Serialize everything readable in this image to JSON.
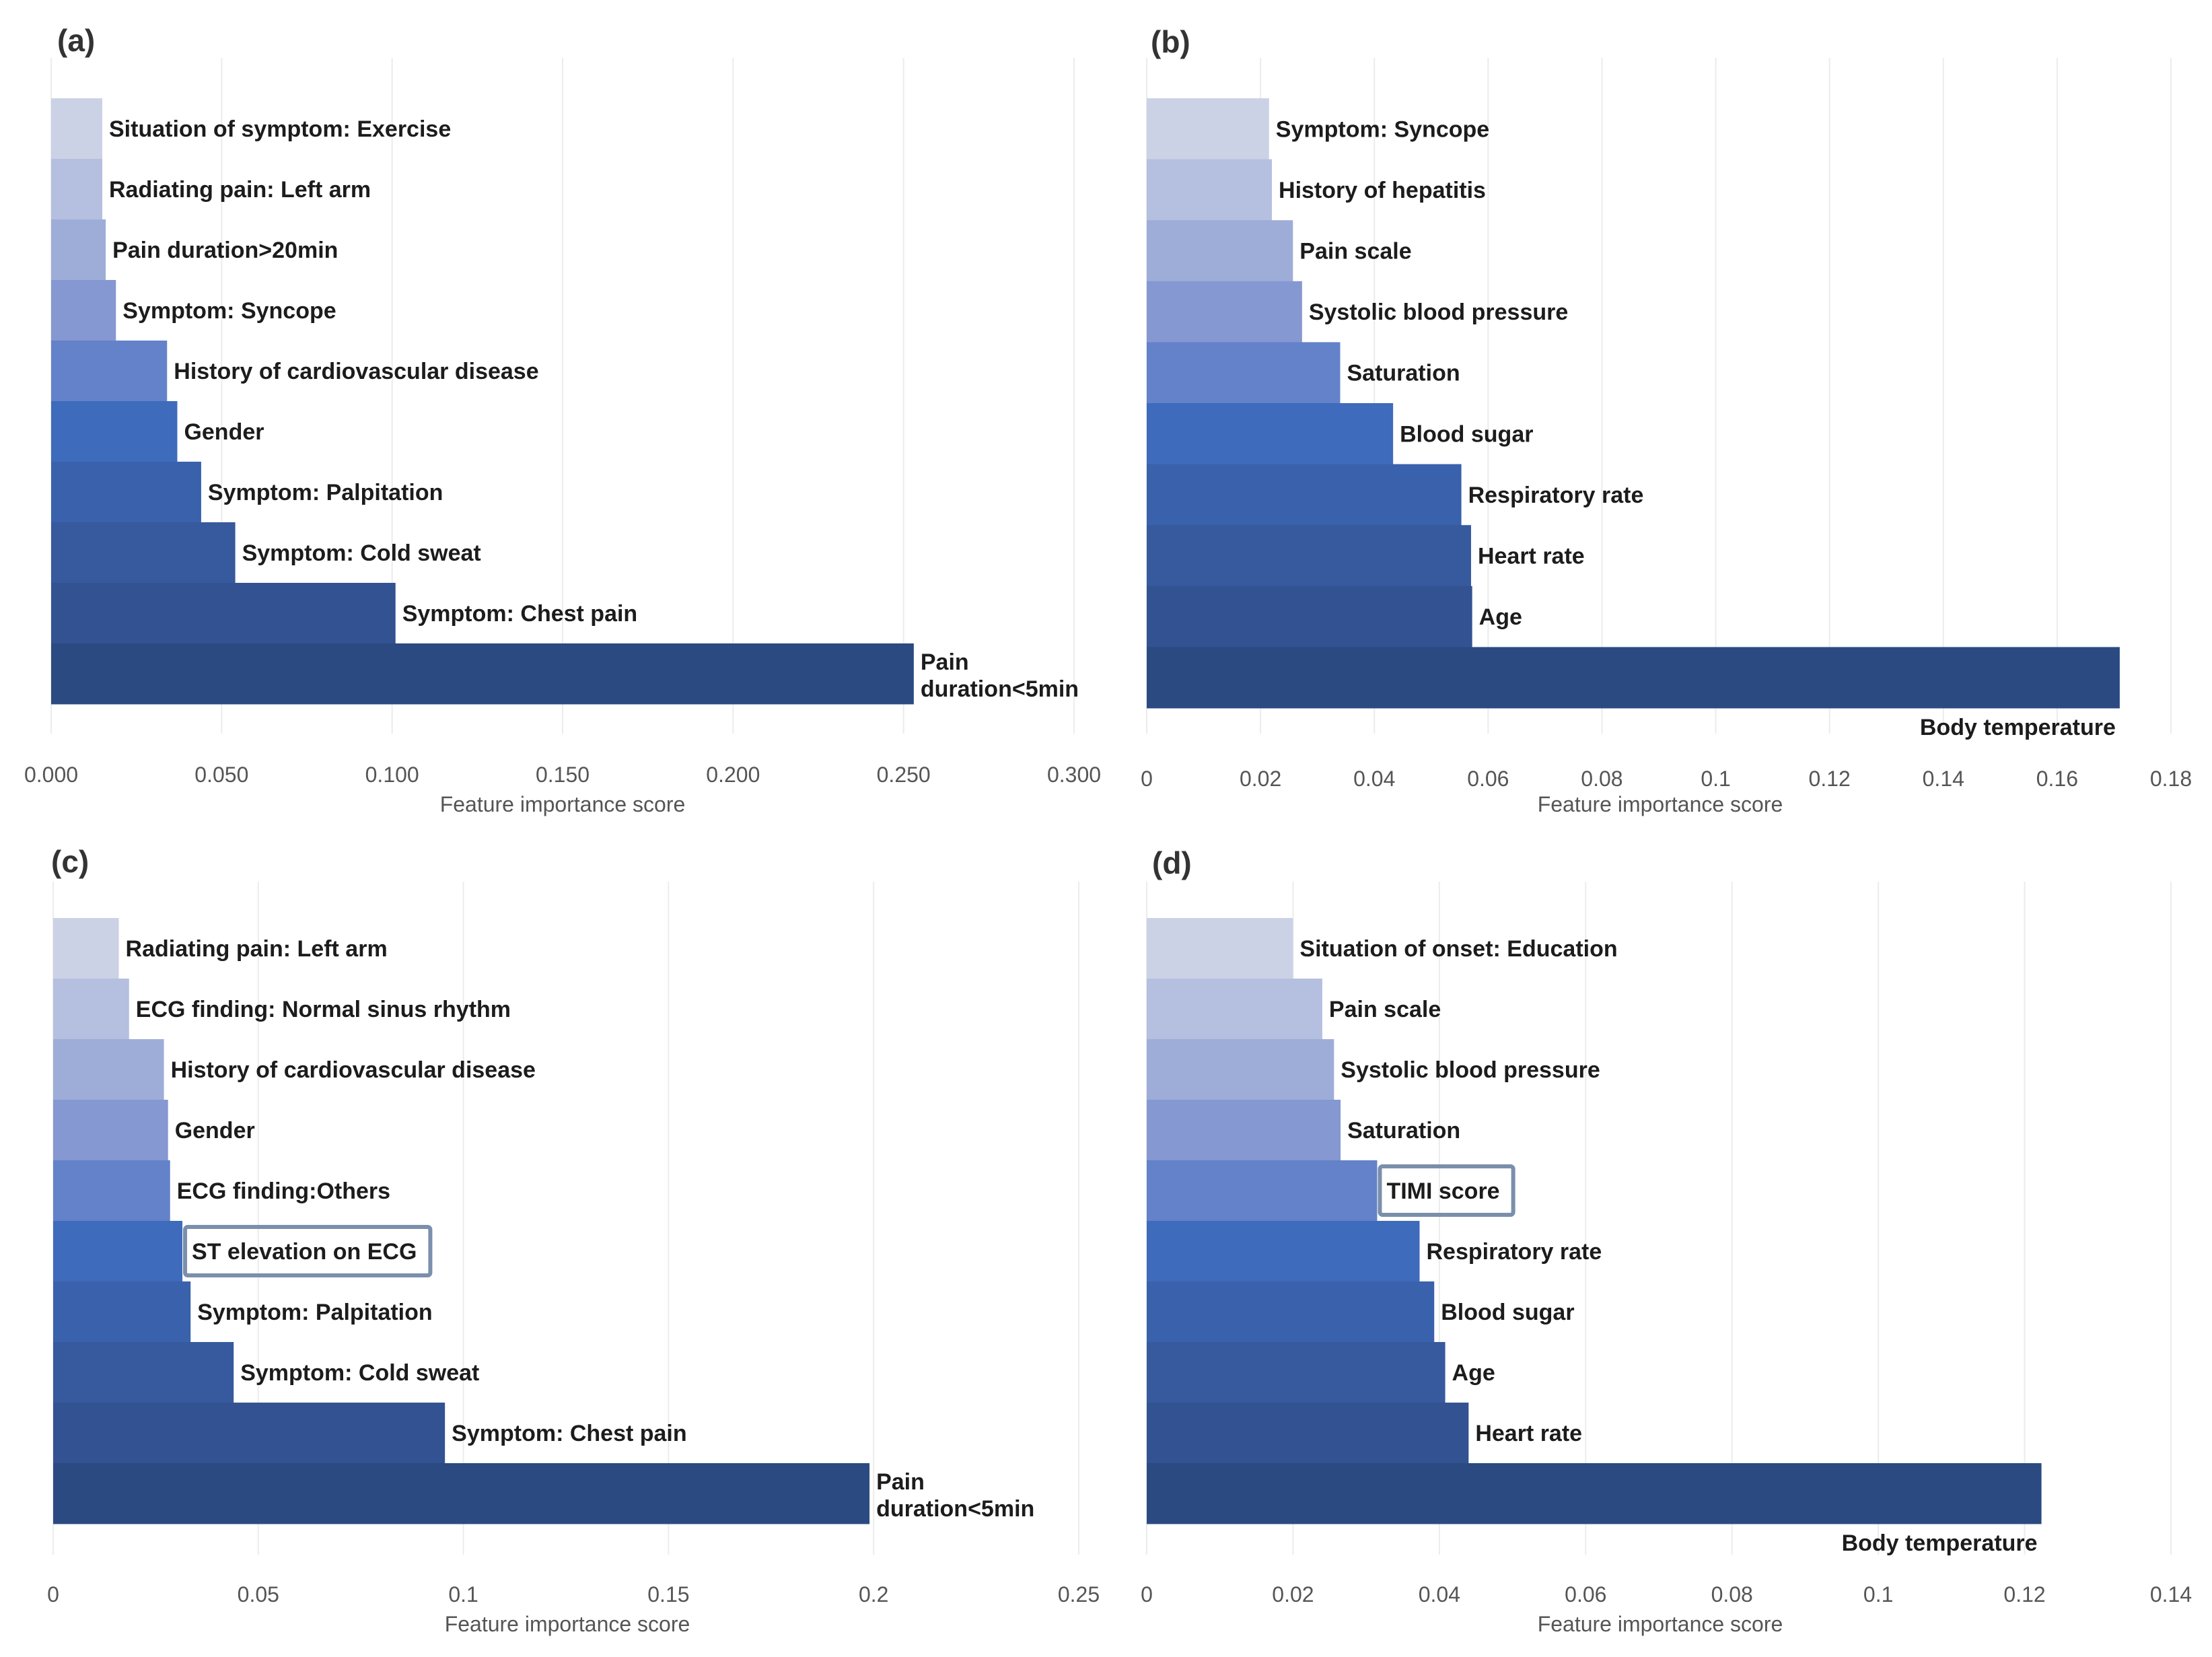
{
  "colors": {
    "ramp": [
      "#ccd2e6",
      "#b5bfdf",
      "#9eadd8",
      "#8698d1",
      "#6382c9",
      "#3e6bbb",
      "#3a61ab",
      "#37599e",
      "#335291",
      "#2b4a82"
    ],
    "highlight": "#7a8fab",
    "grid": "#ececec",
    "text": "#1c1c1c",
    "tick": "#555555"
  },
  "chart_data": [
    {
      "type": "bar",
      "orientation": "horizontal",
      "panel": "(a)",
      "xlabel": "Feature importance score",
      "xlim": [
        0,
        0.3
      ],
      "ticks": [
        0,
        0.05,
        0.1,
        0.15,
        0.2,
        0.25,
        0.3
      ],
      "tick_labels": [
        "0.000",
        "0.050",
        "0.100",
        "0.150",
        "0.200",
        "0.250",
        "0.300"
      ],
      "categories": [
        "Situation of symptom: Exercise",
        "Radiating pain: Left arm",
        "Pain duration>20min",
        "Symptom: Syncope",
        "History of cardiovascular disease",
        "Gender",
        "Symptom: Palpitation",
        "Symptom: Cold sweat",
        "Symptom: Chest pain",
        "Pain duration<5min"
      ],
      "values": [
        0.015,
        0.015,
        0.016,
        0.019,
        0.034,
        0.037,
        0.044,
        0.054,
        0.101,
        0.253
      ],
      "highlighted": []
    },
    {
      "type": "bar",
      "orientation": "horizontal",
      "panel": "(b)",
      "xlabel": "Feature importance score",
      "xlim": [
        0,
        0.18
      ],
      "ticks": [
        0,
        0.02,
        0.04,
        0.06,
        0.08,
        0.1,
        0.12,
        0.14,
        0.16,
        0.18
      ],
      "tick_labels": [
        "0",
        "0.02",
        "0.04",
        "0.06",
        "0.08",
        "0.1",
        "0.12",
        "0.14",
        "0.16",
        "0.18"
      ],
      "categories": [
        "Symptom: Syncope",
        "History of hepatitis",
        "Pain scale",
        "Systolic blood pressure",
        "Saturation",
        "Blood sugar",
        "Respiratory rate",
        "Heart rate",
        "Age",
        "Body temperature"
      ],
      "values": [
        0.0215,
        0.022,
        0.0257,
        0.0273,
        0.034,
        0.0433,
        0.0553,
        0.057,
        0.0572,
        0.171
      ],
      "highlighted": []
    },
    {
      "type": "bar",
      "orientation": "horizontal",
      "panel": "(c)",
      "xlabel": "Feature importance score",
      "xlim": [
        0,
        0.25
      ],
      "ticks": [
        0,
        0.05,
        0.1,
        0.15,
        0.2,
        0.25
      ],
      "tick_labels": [
        "0",
        "0.05",
        "0.1",
        "0.15",
        "0.2",
        "0.25"
      ],
      "categories": [
        "Radiating pain: Left arm",
        "ECG finding: Normal sinus rhythm",
        "History of cardiovascular disease",
        "Gender",
        "ECG finding:Others",
        "ST elevation on ECG",
        "Symptom: Palpitation",
        "Symptom: Cold sweat",
        "Symptom: Chest pain",
        "Pain duration<5min"
      ],
      "values": [
        0.016,
        0.0185,
        0.027,
        0.028,
        0.0285,
        0.0315,
        0.0335,
        0.044,
        0.0955,
        0.199
      ],
      "highlighted": [
        "ST elevation on ECG"
      ]
    },
    {
      "type": "bar",
      "orientation": "horizontal",
      "panel": "(d)",
      "xlabel": "Feature importance score",
      "xlim": [
        0,
        0.14
      ],
      "ticks": [
        0,
        0.02,
        0.04,
        0.06,
        0.08,
        0.1,
        0.12,
        0.14
      ],
      "tick_labels": [
        "0",
        "0.02",
        "0.04",
        "0.06",
        "0.08",
        "0.1",
        "0.12",
        "0.14"
      ],
      "categories": [
        "Situation of onset: Education",
        "Pain scale",
        "Systolic blood pressure",
        "Saturation",
        "TIMI score",
        "Respiratory rate",
        "Blood sugar",
        "Age",
        "Heart rate",
        "Body temperature"
      ],
      "values": [
        0.02,
        0.024,
        0.0256,
        0.0265,
        0.0315,
        0.0373,
        0.0393,
        0.0408,
        0.044,
        0.1223
      ],
      "highlighted": [
        "TIMI score"
      ]
    }
  ]
}
